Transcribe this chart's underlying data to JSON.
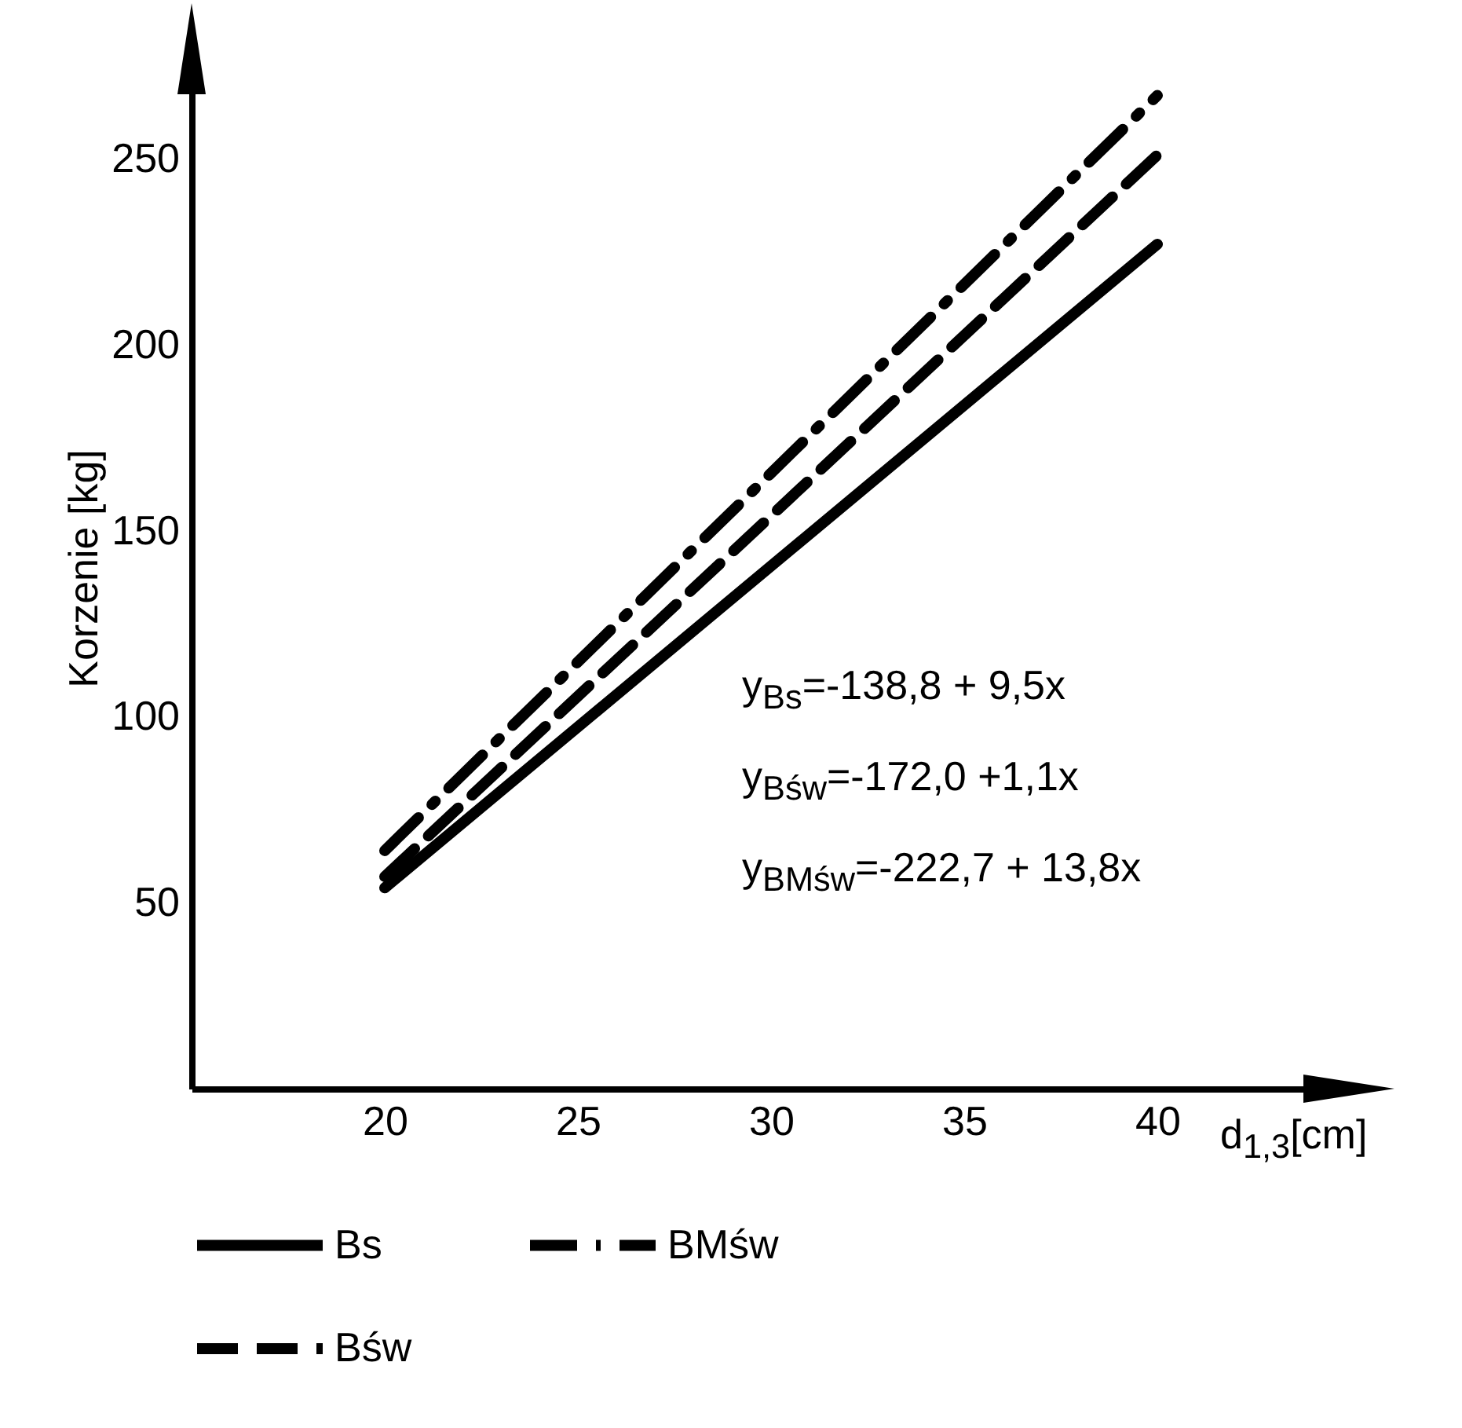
{
  "chart_data": {
    "type": "line",
    "xlabel": "d$_{1,3}$[cm]",
    "ylabel": "Korzenie [kg]",
    "x": [
      20,
      40
    ],
    "xlim": [
      15,
      45
    ],
    "xticks": [
      20,
      25,
      30,
      35,
      40
    ],
    "ylim": [
      0,
      280
    ],
    "yticks": [
      50,
      100,
      150,
      200,
      250
    ],
    "grid": false,
    "legend": "bottom",
    "marker": "none",
    "series": [
      {
        "name": "Bs",
        "color": "#000000",
        "line_style": "solid",
        "values": [
          54,
          227
        ]
      },
      {
        "name": "BMśw",
        "color": "#000000",
        "line_style": "dashdot",
        "values": [
          64,
          267
        ]
      },
      {
        "name": "Bśw",
        "color": "#000000",
        "line_style": "dashed",
        "values": [
          57,
          251
        ]
      }
    ],
    "annotations": [
      "y$_{Bs}$=-138,8 + 9,5x",
      "y$_{Bśw}$=-172,0 +1,1x",
      "y$_{BMśw}$=-222,7 + 13,8x"
    ]
  }
}
